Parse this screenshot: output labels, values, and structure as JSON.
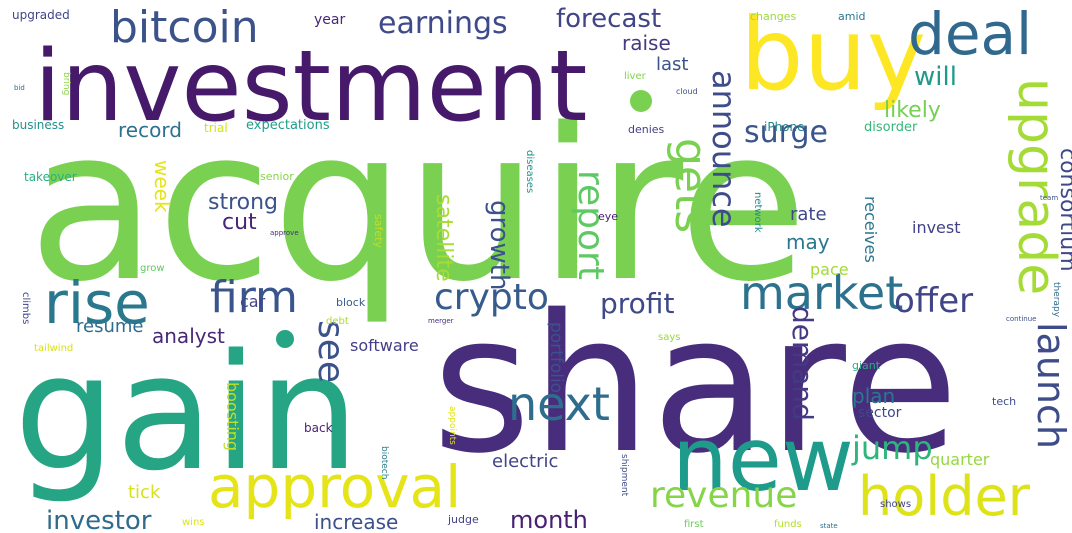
{
  "words": [
    {
      "text": "acquire",
      "color": "#7ad151"
    },
    {
      "text": "share",
      "color": "#472d7b"
    },
    {
      "text": "investment",
      "color": "#46196b"
    },
    {
      "text": "gain",
      "color": "#25a584"
    },
    {
      "text": "buy",
      "color": "#fde725"
    },
    {
      "text": "new",
      "color": "#1e9b8a"
    },
    {
      "text": "deal",
      "color": "#31688e"
    },
    {
      "text": "bitcoin",
      "color": "#3b528b"
    },
    {
      "text": "rise",
      "color": "#2a788e"
    },
    {
      "text": "approval",
      "color": "#e5e419"
    },
    {
      "text": "holder",
      "color": "#dde318"
    },
    {
      "text": "upgrade",
      "color": "#a5db36"
    },
    {
      "text": "market",
      "color": "#2c728e"
    },
    {
      "text": "firm",
      "color": "#39558c"
    },
    {
      "text": "next",
      "color": "#2e6d8e"
    },
    {
      "text": "revenue",
      "color": "#86d549"
    },
    {
      "text": "crypto",
      "color": "#365c8d"
    },
    {
      "text": "launch",
      "color": "#3e4c8a"
    },
    {
      "text": "gets",
      "color": "#7ad151"
    },
    {
      "text": "earnings",
      "color": "#3e4a89"
    },
    {
      "text": "forecast",
      "color": "#414487"
    },
    {
      "text": "investor",
      "color": "#2f6b8e"
    },
    {
      "text": "see",
      "color": "#3b528b"
    },
    {
      "text": "profit",
      "color": "#3e4989"
    },
    {
      "text": "offer",
      "color": "#404588"
    },
    {
      "text": "report",
      "color": "#5ec962"
    },
    {
      "text": "announce",
      "color": "#3e4c8a"
    },
    {
      "text": "surge",
      "color": "#39558c"
    },
    {
      "text": "jump",
      "color": "#2fb47c"
    },
    {
      "text": "month",
      "color": "#482173"
    },
    {
      "text": "consortium",
      "color": "#3f4889"
    },
    {
      "text": "demand",
      "color": "#443983"
    },
    {
      "text": "growth",
      "color": "#3b528b"
    },
    {
      "text": "will",
      "color": "#1f9a8a"
    },
    {
      "text": "likely",
      "color": "#75d054"
    },
    {
      "text": "raise",
      "color": "#443a83"
    },
    {
      "text": "last",
      "color": "#3a548c"
    },
    {
      "text": "strong",
      "color": "#3b528b"
    },
    {
      "text": "cut",
      "color": "#482475"
    },
    {
      "text": "satellite",
      "color": "#a8db34"
    },
    {
      "text": "may",
      "color": "#2a788e"
    },
    {
      "text": "week",
      "color": "#e5e419"
    },
    {
      "text": "record",
      "color": "#2c728e"
    },
    {
      "text": "analyst",
      "color": "#482878"
    },
    {
      "text": "resume",
      "color": "#2f6c8e"
    },
    {
      "text": "increase",
      "color": "#3b518b"
    },
    {
      "text": "electric",
      "color": "#414487"
    },
    {
      "text": "plan",
      "color": "#2a788e"
    },
    {
      "text": "quarter",
      "color": "#95d840"
    },
    {
      "text": "tick",
      "color": "#d8e219"
    },
    {
      "text": "software",
      "color": "#433e85"
    },
    {
      "text": "portfolio",
      "color": "#3b528b"
    },
    {
      "text": "sector",
      "color": "#3f4788"
    },
    {
      "text": "rate",
      "color": "#3e4989"
    },
    {
      "text": "pace",
      "color": "#a2da37"
    },
    {
      "text": "invest",
      "color": "#424086"
    },
    {
      "text": "receives",
      "color": "#2a768e"
    },
    {
      "text": "boosting",
      "color": "#c2df23"
    },
    {
      "text": "car",
      "color": "#414487"
    },
    {
      "text": "year",
      "color": "#482878"
    },
    {
      "text": "expectations",
      "color": "#1f9e89"
    },
    {
      "text": "business",
      "color": "#21918c"
    },
    {
      "text": "trial",
      "color": "#d2e21b"
    },
    {
      "text": "iPhone",
      "color": "#25848e"
    },
    {
      "text": "denies",
      "color": "#433e85"
    },
    {
      "text": "disorder",
      "color": "#35b779"
    },
    {
      "text": "changes",
      "color": "#9bd93c"
    },
    {
      "text": "amid",
      "color": "#2a788e"
    },
    {
      "text": "upgraded",
      "color": "#404588"
    },
    {
      "text": "takeover",
      "color": "#29af7f"
    },
    {
      "text": "senior",
      "color": "#86d549"
    },
    {
      "text": "safety",
      "color": "#bddf26"
    },
    {
      "text": "diseases",
      "color": "#21908d"
    },
    {
      "text": "eye",
      "color": "#481a6c"
    },
    {
      "text": "network",
      "color": "#23898e"
    },
    {
      "text": "block",
      "color": "#365c8d"
    },
    {
      "text": "debt",
      "color": "#addc30"
    },
    {
      "text": "says",
      "color": "#95d840"
    },
    {
      "text": "giant",
      "color": "#28ae80"
    },
    {
      "text": "tech",
      "color": "#3d4e8a"
    },
    {
      "text": "shows",
      "color": "#404588"
    },
    {
      "text": "back",
      "color": "#482475"
    },
    {
      "text": "judge",
      "color": "#423f85"
    },
    {
      "text": "funds",
      "color": "#b5de2b"
    },
    {
      "text": "first",
      "color": "#6ccd5a"
    },
    {
      "text": "wins",
      "color": "#dde318"
    },
    {
      "text": "grow",
      "color": "#5ec962"
    },
    {
      "text": "climbs",
      "color": "#3f4889"
    },
    {
      "text": "tailwind",
      "color": "#d8e219"
    },
    {
      "text": "liver",
      "color": "#7fd34e"
    },
    {
      "text": "bring",
      "color": "#90d743"
    },
    {
      "text": "biotech",
      "color": "#26828e"
    },
    {
      "text": "shipment",
      "color": "#3e4c8a"
    },
    {
      "text": "appoints",
      "color": "#e2e418"
    },
    {
      "text": "therapy",
      "color": "#2e6e8e"
    },
    {
      "text": "cloud",
      "color": "#3b528b"
    },
    {
      "text": "approve",
      "color": "#472d7b"
    },
    {
      "text": "merger",
      "color": "#46307e"
    },
    {
      "text": "continue",
      "color": "#3b528b"
    },
    {
      "text": "state",
      "color": "#2e6e8e"
    },
    {
      "text": "team",
      "color": "#3a548c"
    },
    {
      "text": "bid",
      "color": "#2c728e"
    }
  ]
}
